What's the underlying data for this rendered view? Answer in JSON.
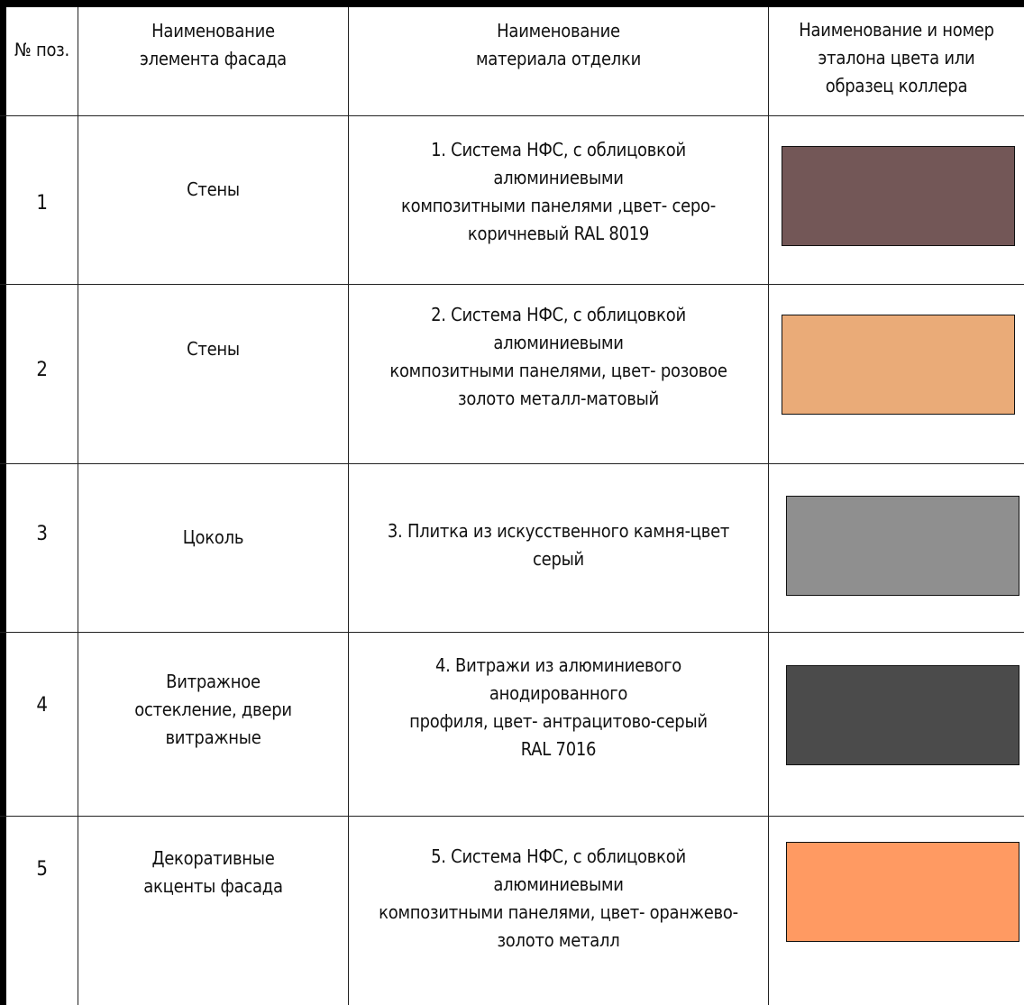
{
  "headers": {
    "pos": "№ поз.",
    "element": "Наименование\nэлемента фасада",
    "material": "Наименование\nматериала отделки",
    "color": "Наименование и номер\nэталона цвета или\nобразец коллера"
  },
  "rows": [
    {
      "num": "1",
      "element": "Стены",
      "material": "1. Система НФС, с облицовкой алюминиевыми\nкомпозитными панелями ,цвет- серо-\nкоричневый RAL 8019",
      "swatch_color": "#735757"
    },
    {
      "num": "2",
      "element": "Стены",
      "material": "2. Система НФС, с облицовкой алюминиевыми\nкомпозитными панелями, цвет- розовое\nзолото металл-матовый",
      "swatch_color": "#EAAB78"
    },
    {
      "num": "3",
      "element": "Цоколь",
      "material": "3. Плитка из искусственного камня-цвет\nсерый",
      "swatch_color": "#8F8F8F"
    },
    {
      "num": "4",
      "element": "Витражное\nостекление, двери\nвитражные",
      "material": "4. Витражи из алюминиевого анодированного\nпрофиля, цвет- антрацитово-серый\nRAL 7016",
      "swatch_color": "#4B4B4B"
    },
    {
      "num": "5",
      "element": "Декоративные\nакценты фасада",
      "material": "5. Система НФС, с облицовкой алюминиевыми\nкомпозитными панелями, цвет- оранжево-\nзолото металл",
      "swatch_color": "#FF9A62"
    }
  ]
}
